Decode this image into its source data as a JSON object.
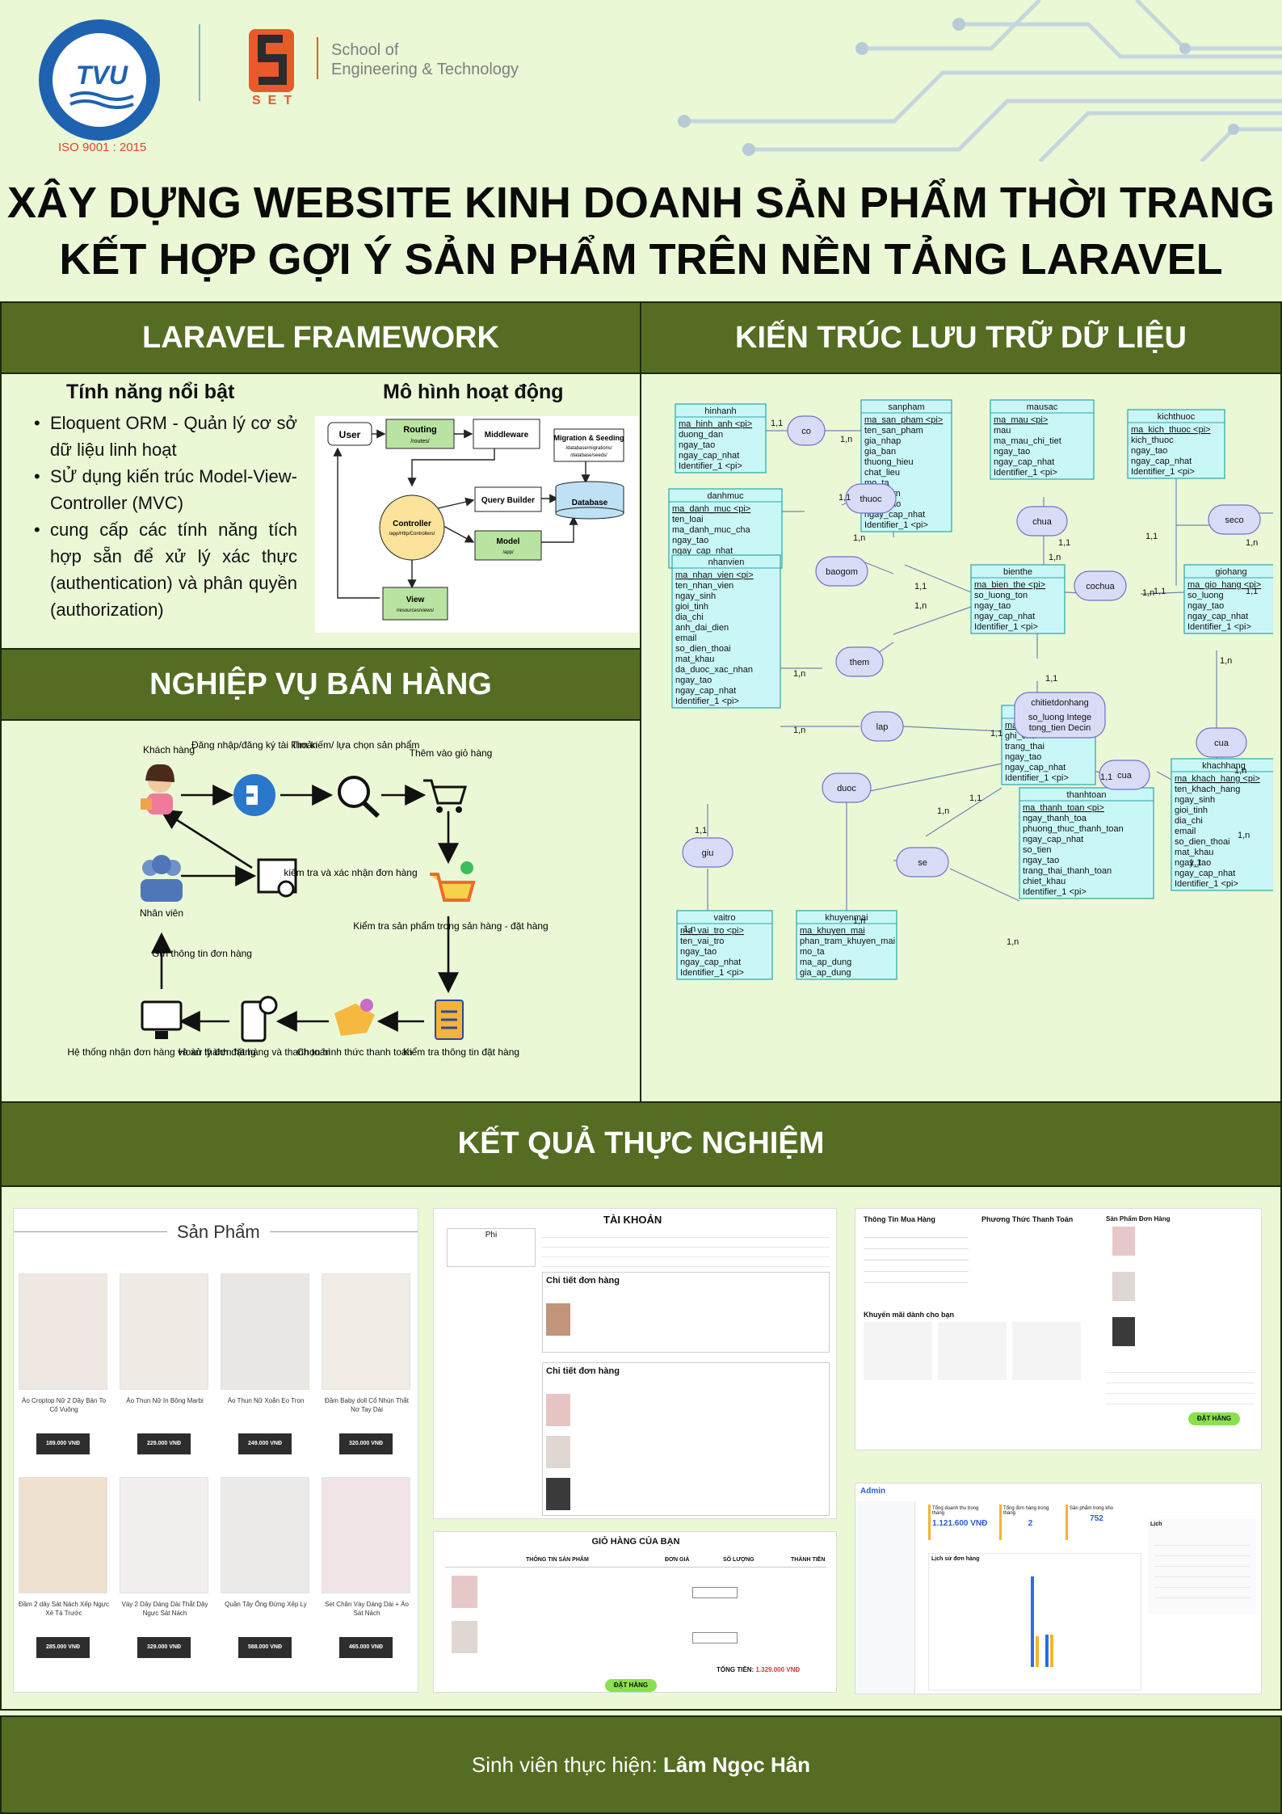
{
  "header": {
    "iso": "ISO 9001 : 2015",
    "tvu_mark": "TVU",
    "set_text": "SET",
    "school_line1": "School of",
    "school_line2": "Engineering & Technology"
  },
  "title": {
    "line1": "XÂY DỰNG WEBSITE KINH DOANH SẢN PHẨM THỜI TRANG",
    "line2": "KẾT HỢP GỢI Ý SẢN PHẨM TRÊN NỀN TẢNG LARAVEL"
  },
  "laravel": {
    "heading": "LARAVEL FRAMEWORK",
    "features_heading": "Tính năng nổi bật",
    "model_heading": "Mô hình hoạt động",
    "features": [
      "Eloquent ORM - Quản lý cơ sở dữ liệu linh hoạt",
      "SỬ dụng kiến trúc Model-View-Controller (MVC)",
      "cung cấp các tính năng tích hợp sẵn để xử lý xác thực (authentication) và phân quyền (authorization)"
    ],
    "diagram": {
      "user": "User",
      "routing": "Routing",
      "routing_path": "/routes/",
      "middleware": "Middleware",
      "migration": "Migration & Seeding",
      "migration_path1": "/database/migrations/",
      "migration_path2": "/database/seeds/",
      "query_builder": "Query Builder",
      "database": "Database",
      "controller": "Controller",
      "controller_path": "/app/Http/Controllers/",
      "model": "Model",
      "model_path": "/app/",
      "view": "View",
      "view_path": "/resources/views/"
    }
  },
  "storage": {
    "heading": "KIẾN TRÚC LƯU TRỮ DỮ LIỆU",
    "entities": [
      {
        "name": "hinhanh",
        "fields": [
          "ma_hinh_anh <pi>",
          "duong_dan",
          "ngay_tao",
          "ngay_cap_nhat",
          "Identifier_1 <pi>"
        ]
      },
      {
        "name": "sanpham",
        "fields": [
          "ma_san_pham <pi>",
          "ten_san_pham",
          "gia_nhap",
          "gia_ban",
          "thuong_hieu",
          "chat_lieu",
          "mo_ta",
          "luot_xem",
          "ngay_tao",
          "ngay_cap_nhat",
          "Identifier_1 <pi>"
        ]
      },
      {
        "name": "mausac",
        "fields": [
          "ma_mau <pi>",
          "mau",
          "ma_mau_chi_tiet",
          "ngay_tao",
          "ngay_cap_nhat",
          "Identifier_1 <pi>"
        ]
      },
      {
        "name": "kichthuoc",
        "fields": [
          "ma_kich_thuoc <pi>",
          "kich_thuoc",
          "ngay_tao",
          "ngay_cap_nhat",
          "Identifier_1 <pi>"
        ]
      },
      {
        "name": "danhmuc",
        "fields": [
          "ma_danh_muc <pi>",
          "ten_loai",
          "ma_danh_muc_cha",
          "ngay_tao",
          "ngay_cap_nhat",
          "Identifier_1 <pi>"
        ]
      },
      {
        "name": "bienthe",
        "fields": [
          "ma_bien_the <pi>",
          "so_luong_ton",
          "ngay_tao",
          "ngay_cap_nhat",
          "Identifier_1 <pi>"
        ]
      },
      {
        "name": "giohang",
        "fields": [
          "ma_gio_hang <pi>",
          "so_luong",
          "ngay_tao",
          "ngay_cap_nhat",
          "Identifier_1 <pi>"
        ]
      },
      {
        "name": "nhanvien",
        "fields": [
          "ma_nhan_vien <pi>",
          "ten_nhan_vien",
          "ngay_sinh",
          "gioi_tinh",
          "dia_chi",
          "anh_dai_dien",
          "email",
          "so_dien_thoai",
          "mat_khau",
          "da_duoc_xac_nhan",
          "ngay_tao",
          "ngay_cap_nhat",
          "Identifier_1 <pi>"
        ]
      },
      {
        "name": "donhang",
        "fields": [
          "ma_don_hang <pi>",
          "ghi_chu",
          "trang_thai",
          "ngay_tao",
          "ngay_cap_nhat",
          "Identifier_1 <pi>"
        ]
      },
      {
        "name": "khachhang",
        "fields": [
          "ma_khach_hang <pi>",
          "ten_khach_hang",
          "ngay_sinh",
          "gioi_tinh",
          "dia_chi",
          "email",
          "so_dien_thoai",
          "mat_khau",
          "ngay_tao",
          "ngay_cap_nhat",
          "Identifier_1 <pi>"
        ]
      },
      {
        "name": "thanhtoan",
        "fields": [
          "ma_thanh_toan <pi>",
          "ngay_thanh_toa",
          "phuong_thuc_thanh_toan",
          "ngay_cap_nhat",
          "so_tien",
          "ngay_tao",
          "trang_thai_thanh_toan",
          "chiet_khau",
          "Identifier_1 <pi>"
        ]
      },
      {
        "name": "vaitro",
        "fields": [
          "ma_vai_tro <pi>",
          "ten_vai_tro",
          "ngay_tao",
          "ngay_cap_nhat",
          "Identifier_1 <pi>"
        ]
      },
      {
        "name": "khuyenmai",
        "fields": [
          "ma_khuyen_mai",
          "phan_tram_khuyen_mai",
          "mo_ta",
          "ma_ap_dung",
          "gia_ap_dung"
        ]
      }
    ],
    "relations": [
      "co",
      "thuoc",
      "chua",
      "seco",
      "baogom",
      "cochua",
      "them",
      "chitietdonhang",
      "lap",
      "cua",
      "cua",
      "giu",
      "duoc",
      "se"
    ],
    "chitietdonhang_fields": [
      "so_luong Intege",
      "tong_tien Decin"
    ],
    "cardinality": [
      "1,1",
      "1,n"
    ]
  },
  "sales": {
    "heading": "NGHIỆP VỤ BÁN HÀNG",
    "steps": {
      "customer": "Khách hàng",
      "login": "Đăng nhập/đăng ký tài khoản",
      "search": "Tìm kiếm/ lựa chọn sản phẩm",
      "add_cart": "Thêm vào giỏ hàng",
      "check_cart": "Kiểm tra sản phẩm trong sản hàng - đặt hàng",
      "check_order": "Kiểm tra thông tin đặt hàng",
      "payment": "Chọn hình thức thanh toán",
      "complete": "Hoàn thành đặt hàng và thanh toán",
      "system": "Hệ thống nhận đơn hàng và xử lý đơn hàng",
      "send_info": "Gửi thông tin đơn hàng",
      "staff": "Nhân viên",
      "confirm": "kiểm tra và xác nhận đơn hàng"
    }
  },
  "results": {
    "heading": "KẾT QUẢ THỰC NGHIỆM",
    "products": {
      "title": "Sản Phẩm",
      "items": [
        {
          "name": "Áo Croptop Nữ 2 Dây Bản To Cổ Vuông",
          "price": "189.000 VNĐ"
        },
        {
          "name": "Áo Thun Nữ In Bông Marbi",
          "price": "229.000 VNĐ"
        },
        {
          "name": "Áo Thun Nữ Xoắn Eo Tron",
          "price": "249.000 VNĐ"
        },
        {
          "name": "Đầm Baby doll Cổ Nhún Thắt Nơ Tay Dài",
          "price": "320.000 VNĐ"
        },
        {
          "name": "Đầm 2 dây Sát Nách Xếp Ngực Xẻ Tà Trước",
          "price": "285.000 VNĐ"
        },
        {
          "name": "Váy 2 Dây Dáng Dài Thắt Dây Ngực Sát Nách",
          "price": "329.000 VNĐ"
        },
        {
          "name": "Quần Tây Ống Đứng Xếp Ly",
          "price": "588.000 VNĐ"
        },
        {
          "name": "Set Chân Váy Dáng Dài + Áo Sát Nách",
          "price": "465.000 VNĐ"
        }
      ]
    },
    "account": {
      "title": "TÀI KHOẢN",
      "side_title": "Phi",
      "order_detail": "Chi tiết đơn hàng"
    },
    "checkout": {
      "buyer_info": "Thông Tin Mua Hàng",
      "payment_method": "Phương Thức Thanh Toán",
      "products": "Sản Phẩm Đơn Hàng",
      "promo": "Khuyến mãi dành cho bạn",
      "order_button": "ĐẶT HÀNG"
    },
    "cart": {
      "title": "GIỎ HÀNG CỦA BẠN",
      "columns": [
        "THÔNG TIN SẢN PHẨM",
        "ĐƠN GIÁ",
        "SỐ LƯỢNG",
        "THÀNH TIỀN"
      ],
      "total_label": "TỔNG TIỀN:",
      "total_value": "1.329.000 VNĐ",
      "button": "ĐẶT HÀNG"
    },
    "admin": {
      "brand": "Admin",
      "stat1_label": "Tổng doanh thu trong tháng",
      "stat1_value": "1.121.600 VNĐ",
      "stat2_label": "Tổng đơn hàng trong tháng",
      "stat2_value": "2",
      "stat3_label": "Sản phẩm trong kho",
      "stat3_value": "752",
      "chart_title": "Lịch sử đơn hàng",
      "calendar_title": "Lịch"
    }
  },
  "footer": {
    "label": "Sinh viên thực hiện:",
    "name": "Lâm Ngọc Hân"
  },
  "colors": {
    "panel_green": "#546d22",
    "background": "#eaf8d6",
    "entity_fill": "#c9f7f7",
    "relation_fill": "#d9dcf6"
  }
}
